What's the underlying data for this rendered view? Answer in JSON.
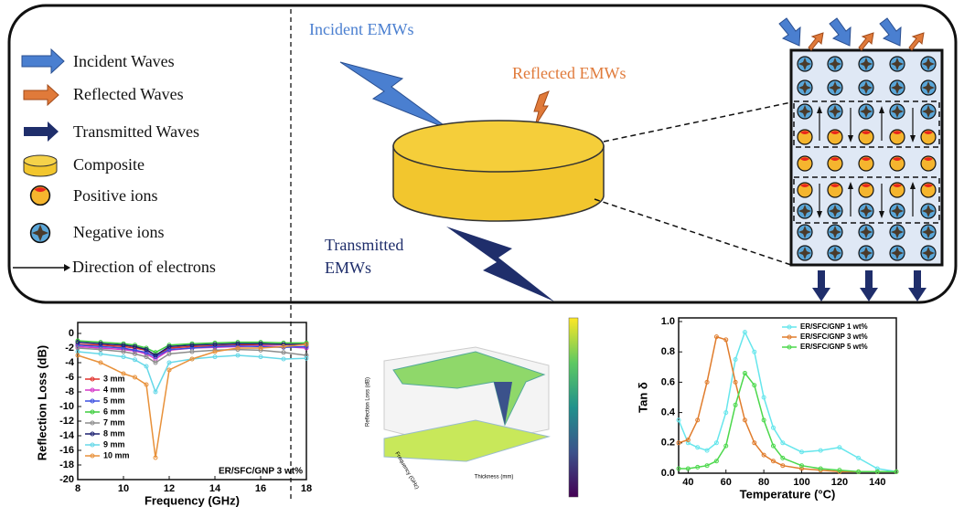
{
  "diagram": {
    "legend": [
      "Incident Waves",
      "Reflected Waves",
      "Transmitted Waves",
      "Composite",
      "Positive ions",
      "Negative ions",
      "Direction of electrons"
    ],
    "incident_label": "Incident EMWs",
    "reflected_label": "Reflected EMWs",
    "transmitted_label": [
      "Transmitted",
      "EMWs"
    ]
  },
  "surface_plot": {
    "zlabel": "Reflection Loss (dB)",
    "ylabel": "Frequency (GHz)",
    "xlabel": "Thickness (mm)"
  },
  "chart_data": [
    {
      "type": "line",
      "xlabel": "Frequency (GHz)",
      "ylabel": "Reflection Loss (dB)",
      "annotation": "ER/SFC/GNP 3 wt%",
      "legend": "lower left",
      "markers": true,
      "x": [
        8,
        9,
        10,
        10.5,
        11,
        11.4,
        12,
        13,
        14,
        15,
        16,
        17,
        18
      ],
      "xlim": [
        8,
        18
      ],
      "xticks": [
        8,
        10,
        12,
        14,
        16,
        18
      ],
      "ylim": [
        -20,
        1
      ],
      "yticks": [
        0,
        -2,
        -4,
        -6,
        -8,
        -10,
        -12,
        -14,
        -16,
        -18,
        -20
      ],
      "series": [
        {
          "name": "3 mm",
          "color": "#e0302a",
          "values": [
            -1.5,
            -1.6,
            -1.8,
            -2,
            -2.3,
            -3,
            -2,
            -1.8,
            -1.7,
            -1.6,
            -1.5,
            -1.5,
            -1.5
          ]
        },
        {
          "name": "4 mm",
          "color": "#d636c8",
          "values": [
            -1.8,
            -2,
            -2.2,
            -2.4,
            -2.8,
            -3.5,
            -2.3,
            -2,
            -1.9,
            -1.8,
            -1.7,
            -1.8,
            -2
          ]
        },
        {
          "name": "5 mm",
          "color": "#3a4fe0",
          "values": [
            -1.6,
            -1.8,
            -2,
            -2.3,
            -2.6,
            -3.2,
            -2.2,
            -2,
            -1.8,
            -1.7,
            -1.8,
            -1.9,
            -1.8
          ]
        },
        {
          "name": "6 mm",
          "color": "#3ccc3c",
          "values": [
            -1,
            -1.2,
            -1.4,
            -1.6,
            -2,
            -2.6,
            -1.6,
            -1.4,
            -1.3,
            -1.2,
            -1.2,
            -1.3,
            -1.3
          ]
        },
        {
          "name": "7 mm",
          "color": "#8c8c8c",
          "values": [
            -2,
            -2.2,
            -2.5,
            -2.8,
            -3.2,
            -4,
            -2.8,
            -2.5,
            -2.3,
            -2.2,
            -2.3,
            -2.6,
            -3
          ]
        },
        {
          "name": "8 mm",
          "color": "#1c2070",
          "values": [
            -1.2,
            -1.4,
            -1.6,
            -1.8,
            -2.2,
            -3,
            -1.8,
            -1.6,
            -1.5,
            -1.4,
            -1.4,
            -1.5,
            -1.5
          ]
        },
        {
          "name": "9 mm",
          "color": "#66d8e8",
          "values": [
            -2.5,
            -2.8,
            -3.2,
            -3.6,
            -4.5,
            -8,
            -4,
            -3.5,
            -3.2,
            -3,
            -3.2,
            -3.5,
            -3.4
          ]
        },
        {
          "name": "10 mm",
          "color": "#e8913a",
          "values": [
            -3,
            -4,
            -5.5,
            -6,
            -7,
            -17,
            -5,
            -3.5,
            -2.5,
            -2,
            -2,
            -1.8,
            -1.5
          ]
        }
      ]
    },
    {
      "type": "line",
      "xlabel": "Temperature (°C)",
      "ylabel": "Tan δ",
      "legend": "upper right",
      "markers": true,
      "x": [
        35,
        40,
        45,
        50,
        55,
        60,
        65,
        70,
        75,
        80,
        85,
        90,
        100,
        110,
        120,
        130,
        140,
        150
      ],
      "xlim": [
        35,
        150
      ],
      "xticks": [
        40,
        60,
        80,
        100,
        120,
        140
      ],
      "ylim": [
        0,
        1
      ],
      "yticks": [
        {
          "value": 0,
          "label": "0.0"
        },
        0.2,
        0.4,
        0.6,
        0.8,
        {
          "value": 1,
          "label": "1.0"
        }
      ],
      "series": [
        {
          "name": "ER/SFC/GNP 1 wt%",
          "color": "#66e6ec",
          "values": [
            0.35,
            0.2,
            0.17,
            0.15,
            0.2,
            0.4,
            0.75,
            0.93,
            0.8,
            0.5,
            0.3,
            0.2,
            0.14,
            0.15,
            0.17,
            0.1,
            0.03,
            0.01
          ]
        },
        {
          "name": "ER/SFC/GNP 3 wt%",
          "color": "#e07c2c",
          "values": [
            0.2,
            0.22,
            0.35,
            0.6,
            0.9,
            0.88,
            0.6,
            0.35,
            0.2,
            0.12,
            0.08,
            0.05,
            0.03,
            0.02,
            0.01,
            0.01,
            0.01,
            0.01
          ]
        },
        {
          "name": "ER/SFC/GNP 5 wt%",
          "color": "#4cd84c",
          "values": [
            0.03,
            0.03,
            0.04,
            0.05,
            0.08,
            0.18,
            0.45,
            0.66,
            0.58,
            0.35,
            0.18,
            0.1,
            0.05,
            0.03,
            0.02,
            0.01,
            0.01,
            0.01
          ]
        }
      ]
    }
  ]
}
